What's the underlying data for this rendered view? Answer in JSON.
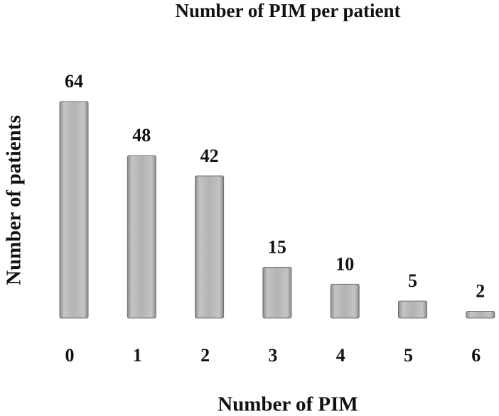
{
  "chart_data": {
    "type": "bar",
    "title": "Number of PIM per patient",
    "x_label": "Number of PIM",
    "y_label": "Number of patients",
    "categories": [
      "0",
      "1",
      "2",
      "3",
      "4",
      "5",
      "6"
    ],
    "values": [
      64,
      48,
      42,
      15,
      10,
      5,
      2
    ],
    "color": "#b0b0b0"
  }
}
